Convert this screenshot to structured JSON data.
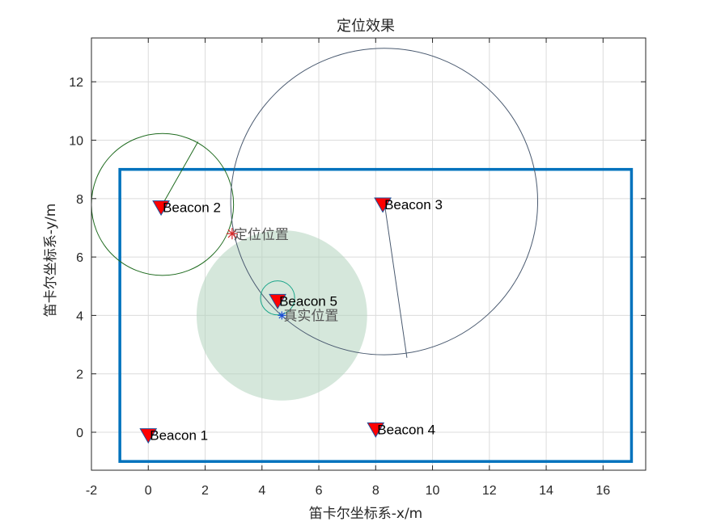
{
  "chart_data": {
    "type": "scatter",
    "title": "定位效果",
    "xlabel": "笛卡尔坐标系-x/m",
    "ylabel": "笛卡尔坐标系-y/m",
    "xlim": [
      -2,
      17.5
    ],
    "ylim": [
      -1.3,
      13.5
    ],
    "xticks": [
      -2,
      0,
      2,
      4,
      6,
      8,
      10,
      12,
      14,
      16
    ],
    "yticks": [
      0,
      2,
      4,
      6,
      8,
      10,
      12
    ],
    "grid": true,
    "boundary": {
      "x1": -1,
      "y1": -1,
      "x2": 17,
      "y2": 9,
      "color": "#0072bd"
    },
    "beacons": [
      {
        "label": "Beacon 1",
        "x": 0,
        "y": -0.1
      },
      {
        "label": "Beacon 2",
        "x": 0.45,
        "y": 7.7
      },
      {
        "label": "Beacon 3",
        "x": 8.25,
        "y": 7.8
      },
      {
        "label": "Beacon 4",
        "x": 8.0,
        "y": 0.1
      },
      {
        "label": "Beacon 5",
        "x": 4.55,
        "y": 4.5
      }
    ],
    "range_circles": [
      {
        "cx": 0.5,
        "cy": 7.8,
        "r": 2.5,
        "color": "#1f6b1f",
        "radius_line_to": [
          1.75,
          9.95
        ]
      },
      {
        "cx": 8.3,
        "cy": 7.9,
        "r": 5.4,
        "color": "#4a5a70",
        "radius_line_to": [
          9.1,
          2.55
        ]
      },
      {
        "cx": 4.55,
        "cy": 4.6,
        "r": 0.6,
        "color": "#1aa58a"
      }
    ],
    "true_area": {
      "cx": 4.7,
      "cy": 4.0,
      "r": 3.0,
      "color": "#b3d4be",
      "opacity": 0.55
    },
    "estimated": {
      "label": "定位位置",
      "x": 2.95,
      "y": 6.8,
      "color": "#d62728"
    },
    "actual": {
      "label": "真实位置",
      "x": 4.7,
      "y": 4.0,
      "color": "#1f4fd6"
    }
  }
}
